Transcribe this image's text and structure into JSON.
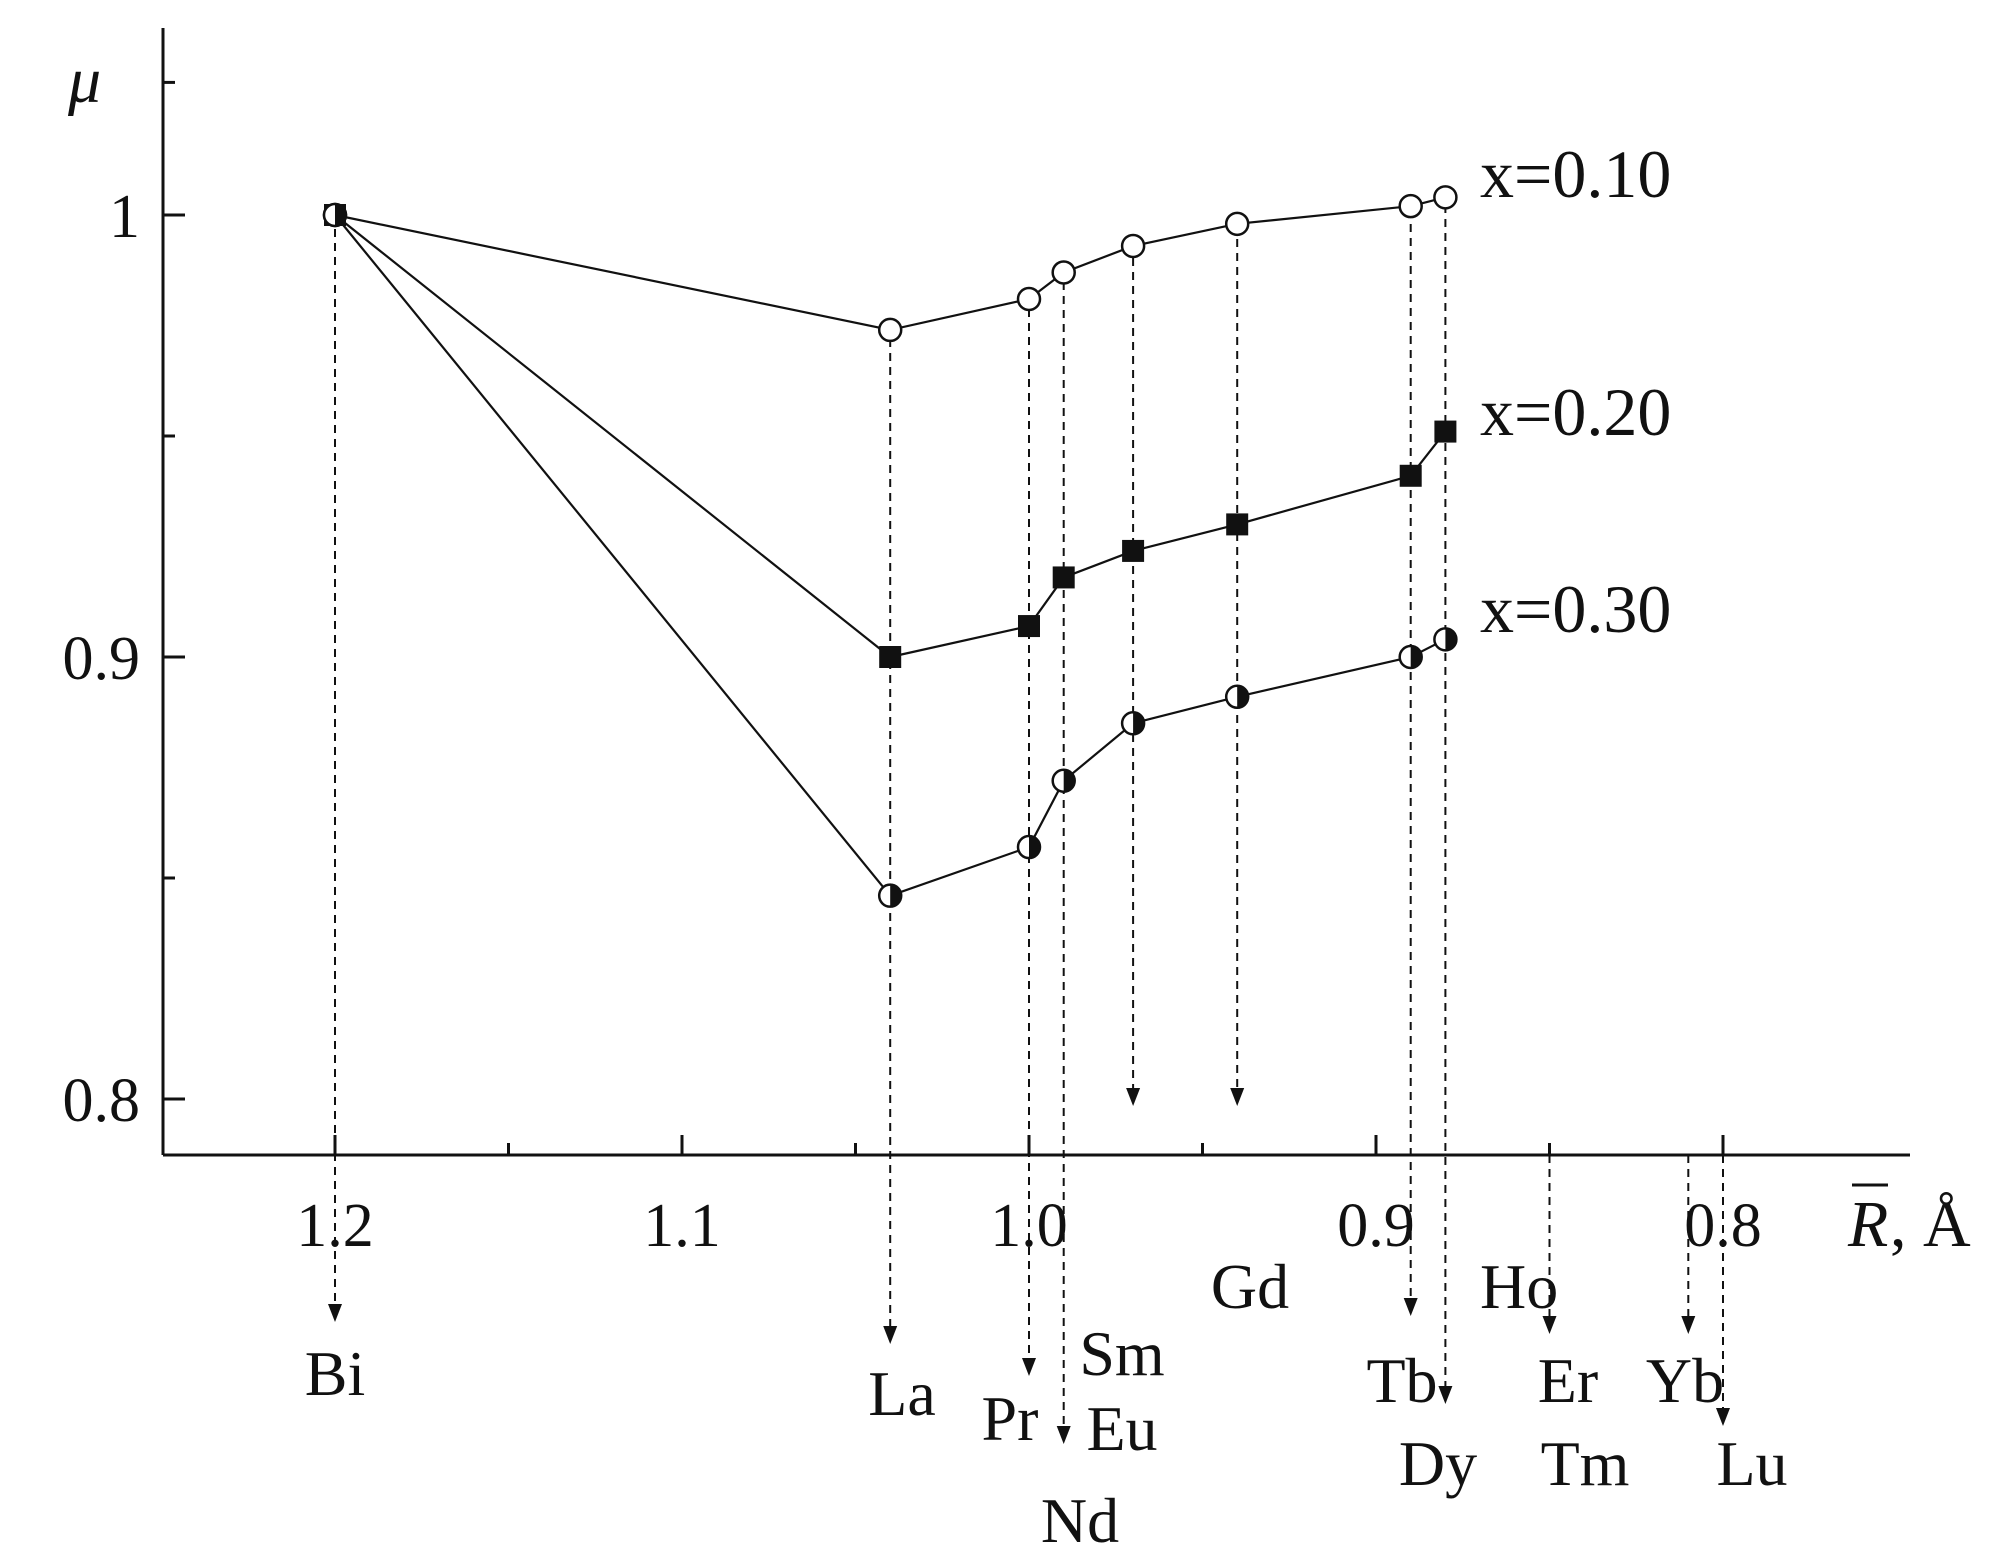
{
  "chart_data": {
    "type": "line",
    "title": "",
    "ylabel": "μ",
    "xlabel": {
      "symbol": "R",
      "unit": ", Å"
    },
    "xlim": [
      1.25,
      0.75
    ],
    "ylim": [
      0.788,
      1.04
    ],
    "x_reversed": true,
    "grid": false,
    "legend": "inline labels at right end of each series",
    "x_ticks": [
      {
        "value": 1.2,
        "label": "1.2"
      },
      {
        "value": 1.1,
        "label": "1.1"
      },
      {
        "value": 1.0,
        "label": "1.0"
      },
      {
        "value": 0.9,
        "label": "0.9"
      },
      {
        "value": 0.8,
        "label": "0.8"
      }
    ],
    "x_minor_ticks": [
      1.15,
      1.05,
      0.95,
      0.85
    ],
    "y_ticks": [
      {
        "value": 1.0,
        "label": "1"
      },
      {
        "value": 0.9,
        "label": "0.9"
      },
      {
        "value": 0.8,
        "label": "0.8"
      }
    ],
    "y_minor_ticks": [
      0.95,
      0.85,
      1.03
    ],
    "elements": [
      {
        "name": "Bi",
        "r": 1.2
      },
      {
        "name": "La",
        "r": 1.04
      },
      {
        "name": "Pr",
        "r": 1.0
      },
      {
        "name": "Nd",
        "r": 0.99
      },
      {
        "name": "Sm",
        "r": 0.97
      },
      {
        "name": "Eu",
        "r": 0.97
      },
      {
        "name": "Gd",
        "r": 0.94
      },
      {
        "name": "Tb",
        "r": 0.89
      },
      {
        "name": "Dy",
        "r": 0.88
      },
      {
        "name": "Ho",
        "r": 0.88
      },
      {
        "name": "Er",
        "r": 0.85
      },
      {
        "name": "Tm",
        "r": 0.85
      },
      {
        "name": "Yb",
        "r": 0.81
      },
      {
        "name": "Lu",
        "r": 0.8
      }
    ],
    "series": [
      {
        "name": "x=0.10",
        "marker": "open-circle",
        "x": [
          1.2,
          1.04,
          1.0,
          0.99,
          0.97,
          0.94,
          0.89,
          0.88
        ],
        "y": [
          1.0,
          0.974,
          0.981,
          0.987,
          0.993,
          0.998,
          1.002,
          1.004
        ]
      },
      {
        "name": "x=0.20",
        "marker": "filled-square",
        "x": [
          1.2,
          1.04,
          1.0,
          0.99,
          0.97,
          0.94,
          0.89,
          0.88
        ],
        "y": [
          1.0,
          0.9,
          0.907,
          0.918,
          0.924,
          0.93,
          0.941,
          0.951
        ]
      },
      {
        "name": "x=0.30",
        "marker": "half-filled-circle",
        "x": [
          1.2,
          1.04,
          1.0,
          0.99,
          0.97,
          0.94,
          0.89,
          0.88
        ],
        "y": [
          1.0,
          0.846,
          0.857,
          0.872,
          0.885,
          0.891,
          0.9,
          0.904
        ]
      }
    ]
  }
}
